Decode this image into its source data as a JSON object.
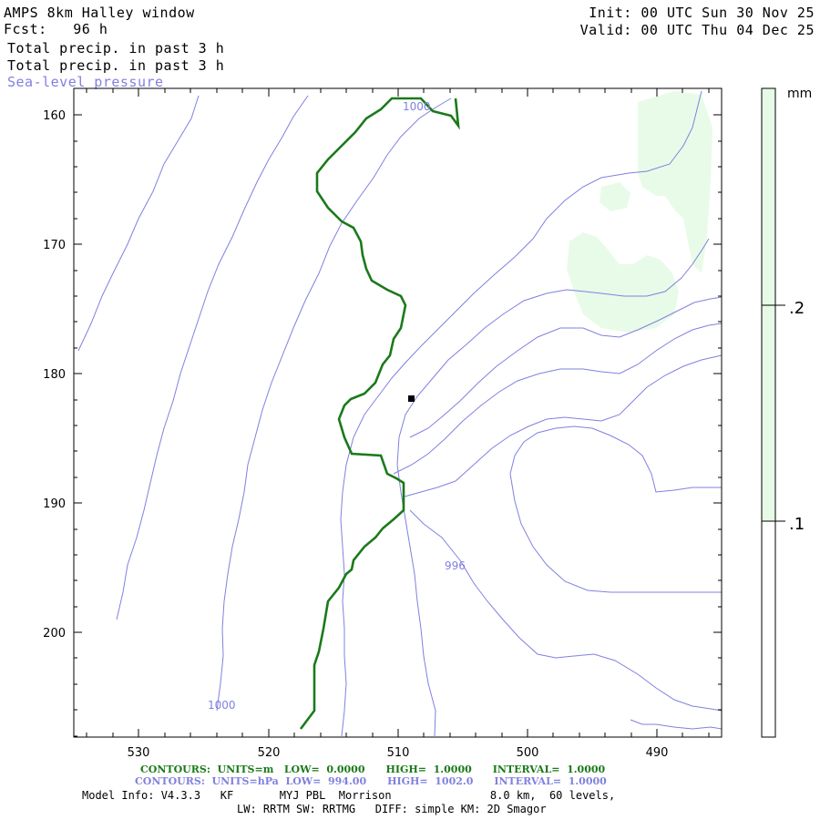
{
  "header": {
    "title": "AMPS 8km Halley window",
    "forecast": "Fcst:   96 h",
    "field1": "Total precip. in past 3 h",
    "field2": "Total precip. in past 3 h",
    "field3": "Sea-level pressure",
    "init": "Init: 00 UTC Sun 30 Nov 25",
    "valid": "Valid: 00 UTC Thu 04 Dec 25"
  },
  "map": {
    "y_ticks": [
      "160",
      "170",
      "180",
      "190",
      "200"
    ],
    "x_ticks": [
      "530",
      "520",
      "510",
      "500",
      "490"
    ],
    "contour_labels": [
      "1000",
      "996",
      "1000"
    ],
    "colors": {
      "slp": "#8080e0",
      "green_line": "#1a7a1a",
      "precip": "#e6fae6"
    }
  },
  "legend": {
    "unit": "mm",
    "levels": [
      ".2",
      ".1"
    ]
  },
  "footer": {
    "contours1": "CONTOURS:  UNITS=m   LOW=  0.0000      HIGH=  1.0000      INTERVAL=  1.0000",
    "contours2": "CONTOURS:  UNITS=hPa  LOW=  994.00      HIGH=  1002.0      INTERVAL=  1.0000",
    "info1": "Model Info: V4.3.3   KF       MYJ PBL  Morrison               8.0 km,  60 levels,",
    "info2": "LW: RRTM SW: RRTMG   DIFF: simple KM: 2D Smagor"
  }
}
